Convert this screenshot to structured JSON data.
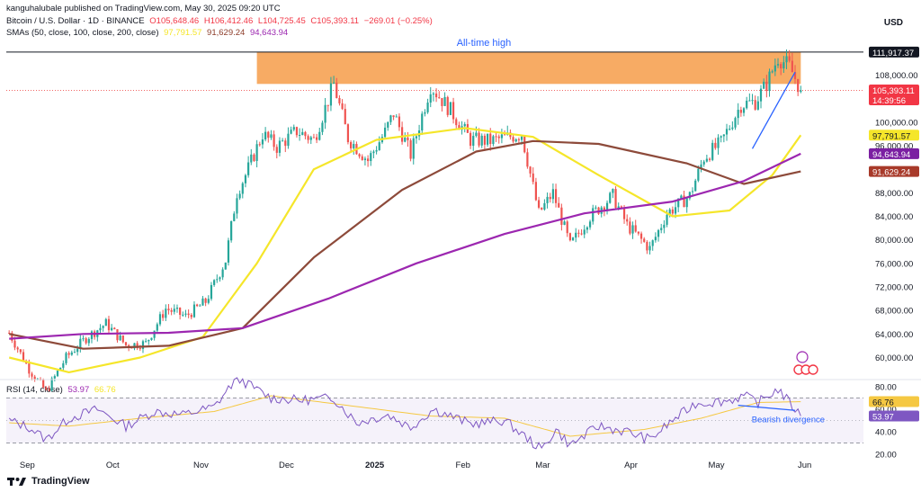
{
  "header": {
    "publisher": "kanguhalubale published on TradingView.com, May 30, 2025 09:20 UTC",
    "symbol": "Bitcoin / U.S. Dollar · 1D · BINANCE",
    "open": "O105,648.46",
    "high": "H106,412.46",
    "low": "L104,725.45",
    "close": "C105,393.11",
    "change": "−269.01 (−0.25%)",
    "sma_label": "SMAs (50, close, 100, close, 200, close)",
    "sma50_value": "97,791.57",
    "sma100_value": "91,629.24",
    "sma200_value": "94,643.94",
    "currency": "USD"
  },
  "footer": {
    "brand": "TradingView"
  },
  "colors": {
    "up": "#26a69a",
    "down": "#ef5350",
    "sma50": "#f5e62a",
    "sma100": "#8d4a3a",
    "sma200": "#9c27b0",
    "zone": "#f7a65c",
    "rsi": "#7e57c2",
    "rsi_ma": "#f5c842",
    "trend": "#2962ff"
  },
  "chart_data": [
    {
      "type": "candlestick",
      "title": "Bitcoin / U.S. Dollar · 1D · BINANCE",
      "ylabel": "USD",
      "ylim": [
        56000,
        115500
      ],
      "yticks": [
        60000,
        64000,
        68000,
        72000,
        76000,
        80000,
        84000,
        88000,
        96000,
        100000,
        108000
      ],
      "x_range": [
        "2024-08-24",
        "2025-06-21"
      ],
      "x_ticks": [
        "Sep",
        "Oct",
        "Nov",
        "Dec",
        "2025",
        "Feb",
        "Mar",
        "Apr",
        "May",
        "Jun"
      ],
      "close_path": [
        [
          "2024-08-25",
          64200
        ],
        [
          "2024-09-01",
          58000
        ],
        [
          "2024-09-07",
          54200
        ],
        [
          "2024-09-14",
          60000
        ],
        [
          "2024-09-21",
          63300
        ],
        [
          "2024-09-28",
          65800
        ],
        [
          "2024-10-05",
          62100
        ],
        [
          "2024-10-12",
          62400
        ],
        [
          "2024-10-19",
          68300
        ],
        [
          "2024-10-26",
          67000
        ],
        [
          "2024-11-02",
          69500
        ],
        [
          "2024-11-09",
          76500
        ],
        [
          "2024-11-13",
          88000
        ],
        [
          "2024-11-16",
          91000
        ],
        [
          "2024-11-22",
          98000
        ],
        [
          "2024-11-27",
          95800
        ],
        [
          "2024-12-04",
          98500
        ],
        [
          "2024-12-10",
          97000
        ],
        [
          "2024-12-17",
          106500
        ],
        [
          "2024-12-22",
          97300
        ],
        [
          "2024-12-29",
          93500
        ],
        [
          "2025-01-04",
          98300
        ],
        [
          "2025-01-07",
          101500
        ],
        [
          "2025-01-13",
          94500
        ],
        [
          "2025-01-20",
          106200
        ],
        [
          "2025-01-27",
          102000
        ],
        [
          "2025-02-03",
          97000
        ],
        [
          "2025-02-10",
          96800
        ],
        [
          "2025-02-21",
          98000
        ],
        [
          "2025-02-27",
          84500
        ],
        [
          "2025-03-04",
          88000
        ],
        [
          "2025-03-10",
          79000
        ],
        [
          "2025-03-17",
          84000
        ],
        [
          "2025-03-25",
          87500
        ],
        [
          "2025-03-30",
          82500
        ],
        [
          "2025-04-07",
          78500
        ],
        [
          "2025-04-13",
          84500
        ],
        [
          "2025-04-21",
          87500
        ],
        [
          "2025-04-26",
          94000
        ],
        [
          "2025-05-02",
          96500
        ],
        [
          "2025-05-09",
          103000
        ],
        [
          "2025-05-14",
          103500
        ],
        [
          "2025-05-18",
          106500
        ],
        [
          "2025-05-22",
          111000
        ],
        [
          "2025-05-26",
          109500
        ],
        [
          "2025-05-30",
          105393
        ]
      ],
      "series": [
        {
          "name": "SMA 50",
          "current": 97791.57,
          "path": [
            [
              "2024-08-25",
              60000
            ],
            [
              "2024-09-15",
              57500
            ],
            [
              "2024-10-10",
              60000
            ],
            [
              "2024-11-01",
              63500
            ],
            [
              "2024-11-20",
              76000
            ],
            [
              "2024-12-10",
              92000
            ],
            [
              "2025-01-01",
              97000
            ],
            [
              "2025-02-01",
              99000
            ],
            [
              "2025-02-25",
              97500
            ],
            [
              "2025-03-20",
              91000
            ],
            [
              "2025-04-15",
              84000
            ],
            [
              "2025-05-05",
              85000
            ],
            [
              "2025-05-20",
              91000
            ],
            [
              "2025-05-30",
              97791.57
            ]
          ]
        },
        {
          "name": "SMA 100",
          "current": 91629.24,
          "path": [
            [
              "2024-08-25",
              64000
            ],
            [
              "2024-09-20",
              61500
            ],
            [
              "2024-10-20",
              62000
            ],
            [
              "2024-11-15",
              65000
            ],
            [
              "2024-12-10",
              77000
            ],
            [
              "2025-01-10",
              88500
            ],
            [
              "2025-02-05",
              95000
            ],
            [
              "2025-02-25",
              96800
            ],
            [
              "2025-03-20",
              96300
            ],
            [
              "2025-04-20",
              93000
            ],
            [
              "2025-05-10",
              89500
            ],
            [
              "2025-05-30",
              91629.24
            ]
          ]
        },
        {
          "name": "SMA 200",
          "current": 94643.94,
          "path": [
            [
              "2024-08-25",
              63200
            ],
            [
              "2024-09-20",
              64000
            ],
            [
              "2024-10-20",
              64200
            ],
            [
              "2024-11-15",
              65000
            ],
            [
              "2024-12-15",
              70000
            ],
            [
              "2025-01-15",
              76000
            ],
            [
              "2025-02-15",
              81000
            ],
            [
              "2025-03-15",
              84500
            ],
            [
              "2025-04-15",
              86500
            ],
            [
              "2025-05-10",
              90000
            ],
            [
              "2025-05-30",
              94643.94
            ]
          ]
        }
      ],
      "last_price": {
        "value": 105393.11,
        "label": "105,393.11",
        "countdown": "14:39:56"
      },
      "ath": {
        "value": 111917.37,
        "label": "111,917.37"
      },
      "annotations": [
        {
          "text": "All-time high",
          "zone": [
            106500,
            111917.37
          ],
          "zone_x": [
            "2024-11-20",
            "2025-05-30"
          ]
        },
        {
          "text": "",
          "trendline": [
            [
              "2025-05-13",
              95500
            ],
            [
              "2025-05-28",
              108500
            ]
          ]
        }
      ]
    },
    {
      "type": "line",
      "title": "RSI (14, close)",
      "ylim": [
        20,
        80
      ],
      "yticks": [
        20,
        40,
        60,
        80
      ],
      "band": [
        30,
        70
      ],
      "series": [
        {
          "name": "RSI",
          "current": 53.97,
          "path": [
            [
              "2024-08-25",
              50
            ],
            [
              "2024-09-01",
              44
            ],
            [
              "2024-09-07",
              33
            ],
            [
              "2024-09-15",
              52
            ],
            [
              "2024-09-25",
              60
            ],
            [
              "2024-10-05",
              45
            ],
            [
              "2024-10-15",
              58
            ],
            [
              "2024-10-25",
              55
            ],
            [
              "2024-11-05",
              62
            ],
            [
              "2024-11-13",
              88
            ],
            [
              "2024-11-25",
              70
            ],
            [
              "2024-12-05",
              68
            ],
            [
              "2024-12-17",
              70
            ],
            [
              "2024-12-25",
              48
            ],
            [
              "2025-01-05",
              55
            ],
            [
              "2025-01-13",
              44
            ],
            [
              "2025-01-21",
              60
            ],
            [
              "2025-02-03",
              47
            ],
            [
              "2025-02-15",
              50
            ],
            [
              "2025-02-28",
              24
            ],
            [
              "2025-03-05",
              42
            ],
            [
              "2025-03-10",
              28
            ],
            [
              "2025-03-20",
              45
            ],
            [
              "2025-03-30",
              40
            ],
            [
              "2025-04-07",
              33
            ],
            [
              "2025-04-15",
              50
            ],
            [
              "2025-04-23",
              65
            ],
            [
              "2025-05-05",
              68
            ],
            [
              "2025-05-10",
              72
            ],
            [
              "2025-05-15",
              66
            ],
            [
              "2025-05-22",
              78
            ],
            [
              "2025-05-26",
              66
            ],
            [
              "2025-05-30",
              53.97
            ]
          ]
        },
        {
          "name": "RSI-based MA",
          "current": 66.76,
          "path": [
            [
              "2024-08-25",
              48
            ],
            [
              "2024-09-15",
              45
            ],
            [
              "2024-10-10",
              52
            ],
            [
              "2024-11-05",
              58
            ],
            [
              "2024-11-25",
              72
            ],
            [
              "2024-12-20",
              64
            ],
            [
              "2025-01-20",
              54
            ],
            [
              "2025-02-15",
              52
            ],
            [
              "2025-03-10",
              36
            ],
            [
              "2025-04-05",
              42
            ],
            [
              "2025-04-25",
              52
            ],
            [
              "2025-05-15",
              66
            ],
            [
              "2025-05-30",
              66.76
            ]
          ]
        }
      ],
      "annotations": [
        {
          "text": "Bearish divergence",
          "line": [
            [
              "2025-05-08",
              63.5
            ],
            [
              "2025-05-28",
              59
            ]
          ]
        }
      ]
    }
  ]
}
